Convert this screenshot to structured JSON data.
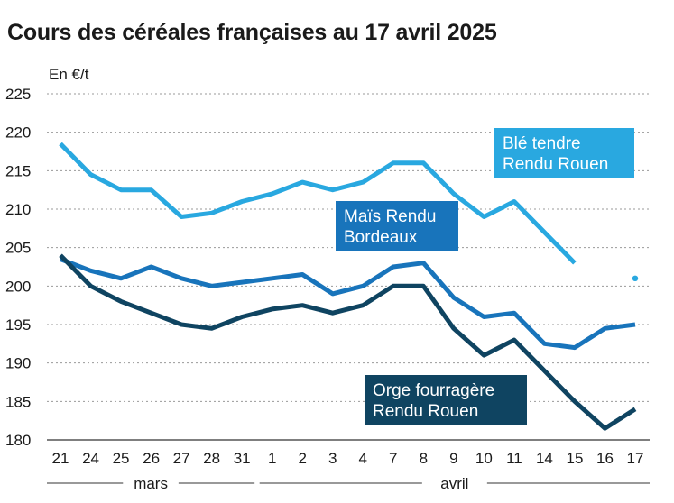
{
  "title": "Cours des céréales françaises au 17 avril 2025",
  "chart_data": {
    "type": "line",
    "title": "Cours des céréales françaises au 17 avril 2025",
    "ylabel": "En €/t",
    "xlabel": "",
    "ylim": [
      180,
      225
    ],
    "yticks": [
      180,
      185,
      190,
      195,
      200,
      205,
      210,
      215,
      220,
      225
    ],
    "grid": true,
    "categories": [
      "21",
      "24",
      "25",
      "26",
      "27",
      "28",
      "31",
      "1",
      "2",
      "3",
      "4",
      "7",
      "8",
      "9",
      "10",
      "11",
      "14",
      "15",
      "16",
      "17"
    ],
    "month_groups": [
      {
        "label": "mars",
        "from": 0,
        "to": 6
      },
      {
        "label": "avril",
        "from": 7,
        "to": 19
      }
    ],
    "series": [
      {
        "name": "Blé tendre Rendu Rouen",
        "label_lines": [
          "Blé tendre",
          "Rendu Rouen"
        ],
        "color": "#29a8e0",
        "values": [
          218.5,
          214.5,
          212.5,
          212.5,
          209,
          209.5,
          211,
          212,
          213.5,
          212.5,
          213.5,
          216,
          216,
          212,
          209,
          211,
          207,
          203,
          null,
          201
        ]
      },
      {
        "name": "Maïs Rendu Bordeaux",
        "label_lines": [
          "Maïs Rendu",
          "Bordeaux"
        ],
        "color": "#1874bb",
        "values": [
          203.5,
          202,
          201,
          202.5,
          201,
          200,
          200.5,
          201,
          201.5,
          199,
          200,
          202.5,
          203,
          198.5,
          196,
          196.5,
          192.5,
          192,
          194.5,
          195
        ]
      },
      {
        "name": "Orge fourragère Rendu Rouen",
        "label_lines": [
          "Orge fourragère",
          "Rendu Rouen"
        ],
        "color": "#0f4461",
        "values": [
          204,
          200,
          198,
          196.5,
          195,
          194.5,
          196,
          197,
          197.5,
          196.5,
          197.5,
          200,
          200,
          194.5,
          191,
          193,
          189,
          185,
          181.5,
          184
        ]
      }
    ]
  }
}
